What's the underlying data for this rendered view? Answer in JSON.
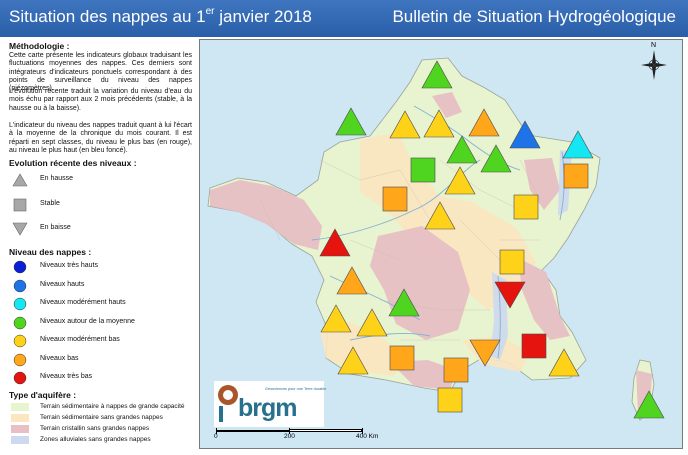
{
  "header": {
    "title_main": "Situation des nappes au 1",
    "title_sup": "er",
    "title_end": " janvier 2018",
    "title_right": "Bulletin de Situation Hydrogéologique"
  },
  "legend": {
    "methodology_title": "Méthodologie :",
    "methodology_p1": "Cette carte présente les indicateurs globaux traduisant les fluctuations moyennes des nappes. Ces derniers sont intégrateurs d'indicateurs ponctuels correspondant à des points de surveillance du niveau des nappes (piézomètres).",
    "methodology_p2": "L'évolution récente traduit la variation du niveau d'eau du mois échu par rapport aux 2 mois précédents (stable, à la hausse ou à la baisse).",
    "methodology_p3": "L'indicateur du niveau des nappes traduit quant à lui l'écart à la moyenne de la chronique du mois courant. Il est réparti en sept classes, du niveau le plus bas (en rouge), au niveau le plus haut (en bleu foncé).",
    "evolution_title": "Evolution récente des niveaux :",
    "evolution_items": [
      "En hausse",
      "Stable",
      "En baisse"
    ],
    "level_title": "Niveau des nappes :",
    "level_items": [
      {
        "label": "Niveaux très hauts",
        "color": "#0b1fd6"
      },
      {
        "label": "Niveaux hauts",
        "color": "#1e73e8"
      },
      {
        "label": "Niveaux modérément hauts",
        "color": "#14e6f2"
      },
      {
        "label": "Niveaux autour de la moyenne",
        "color": "#4fd420"
      },
      {
        "label": "Niveaux modérément bas",
        "color": "#ffd21a"
      },
      {
        "label": "Niveaux bas",
        "color": "#ffa61a"
      },
      {
        "label": "Niveaux très bas",
        "color": "#e5140f"
      }
    ],
    "aquifer_title": "Type d'aquifère :",
    "aquifer_items": [
      {
        "label": "Terrain sédimentaire à nappes de grande capacité",
        "color": "#e8f3cf"
      },
      {
        "label": "Terrain sédimentaire sans grandes nappes",
        "color": "#fbe6c0"
      },
      {
        "label": "Terrain cristallin sans grandes nappes",
        "color": "#e7bfc4"
      },
      {
        "label": "Zones alluviales sans grandes nappes",
        "color": "#cdd9ee"
      }
    ]
  },
  "map": {
    "compass_label": "N",
    "logo_text": "brgm",
    "logo_tagline": "Géosciences pour une Terre durable",
    "scale_labels": [
      "0",
      "200",
      "400 Km"
    ],
    "symbols": [
      {
        "shape": "up",
        "level": "autour de la moyenne"
      },
      {
        "shape": "up",
        "level": "autour de la moyenne"
      },
      {
        "shape": "up",
        "level": "modérément bas"
      },
      {
        "shape": "up",
        "level": "modérément bas"
      },
      {
        "shape": "up",
        "level": "bas"
      },
      {
        "shape": "up",
        "level": "hauts"
      },
      {
        "shape": "up",
        "level": "modérément hauts"
      },
      {
        "shape": "up",
        "level": "autour de la moyenne"
      },
      {
        "shape": "up",
        "level": "autour de la moyenne"
      },
      {
        "shape": "square",
        "level": "autour de la moyenne"
      },
      {
        "shape": "square",
        "level": "bas"
      },
      {
        "shape": "up",
        "level": "modérément bas"
      },
      {
        "shape": "square",
        "level": "bas"
      },
      {
        "shape": "up",
        "level": "modérément bas"
      },
      {
        "shape": "square",
        "level": "modérément bas"
      },
      {
        "shape": "up",
        "level": "très bas"
      },
      {
        "shape": "square",
        "level": "modérément bas"
      },
      {
        "shape": "up",
        "level": "bas"
      },
      {
        "shape": "down",
        "level": "très bas"
      },
      {
        "shape": "up",
        "level": "autour de la moyenne"
      },
      {
        "shape": "up",
        "level": "modérément bas"
      },
      {
        "shape": "up",
        "level": "modérément bas"
      },
      {
        "shape": "square",
        "level": "très bas"
      },
      {
        "shape": "up",
        "level": "modérément bas"
      },
      {
        "shape": "square",
        "level": "bas"
      },
      {
        "shape": "down",
        "level": "bas"
      },
      {
        "shape": "square",
        "level": "bas"
      },
      {
        "shape": "up",
        "level": "modérément bas"
      },
      {
        "shape": "square",
        "level": "modérément bas"
      },
      {
        "shape": "up",
        "level": "autour de la moyenne"
      }
    ]
  }
}
